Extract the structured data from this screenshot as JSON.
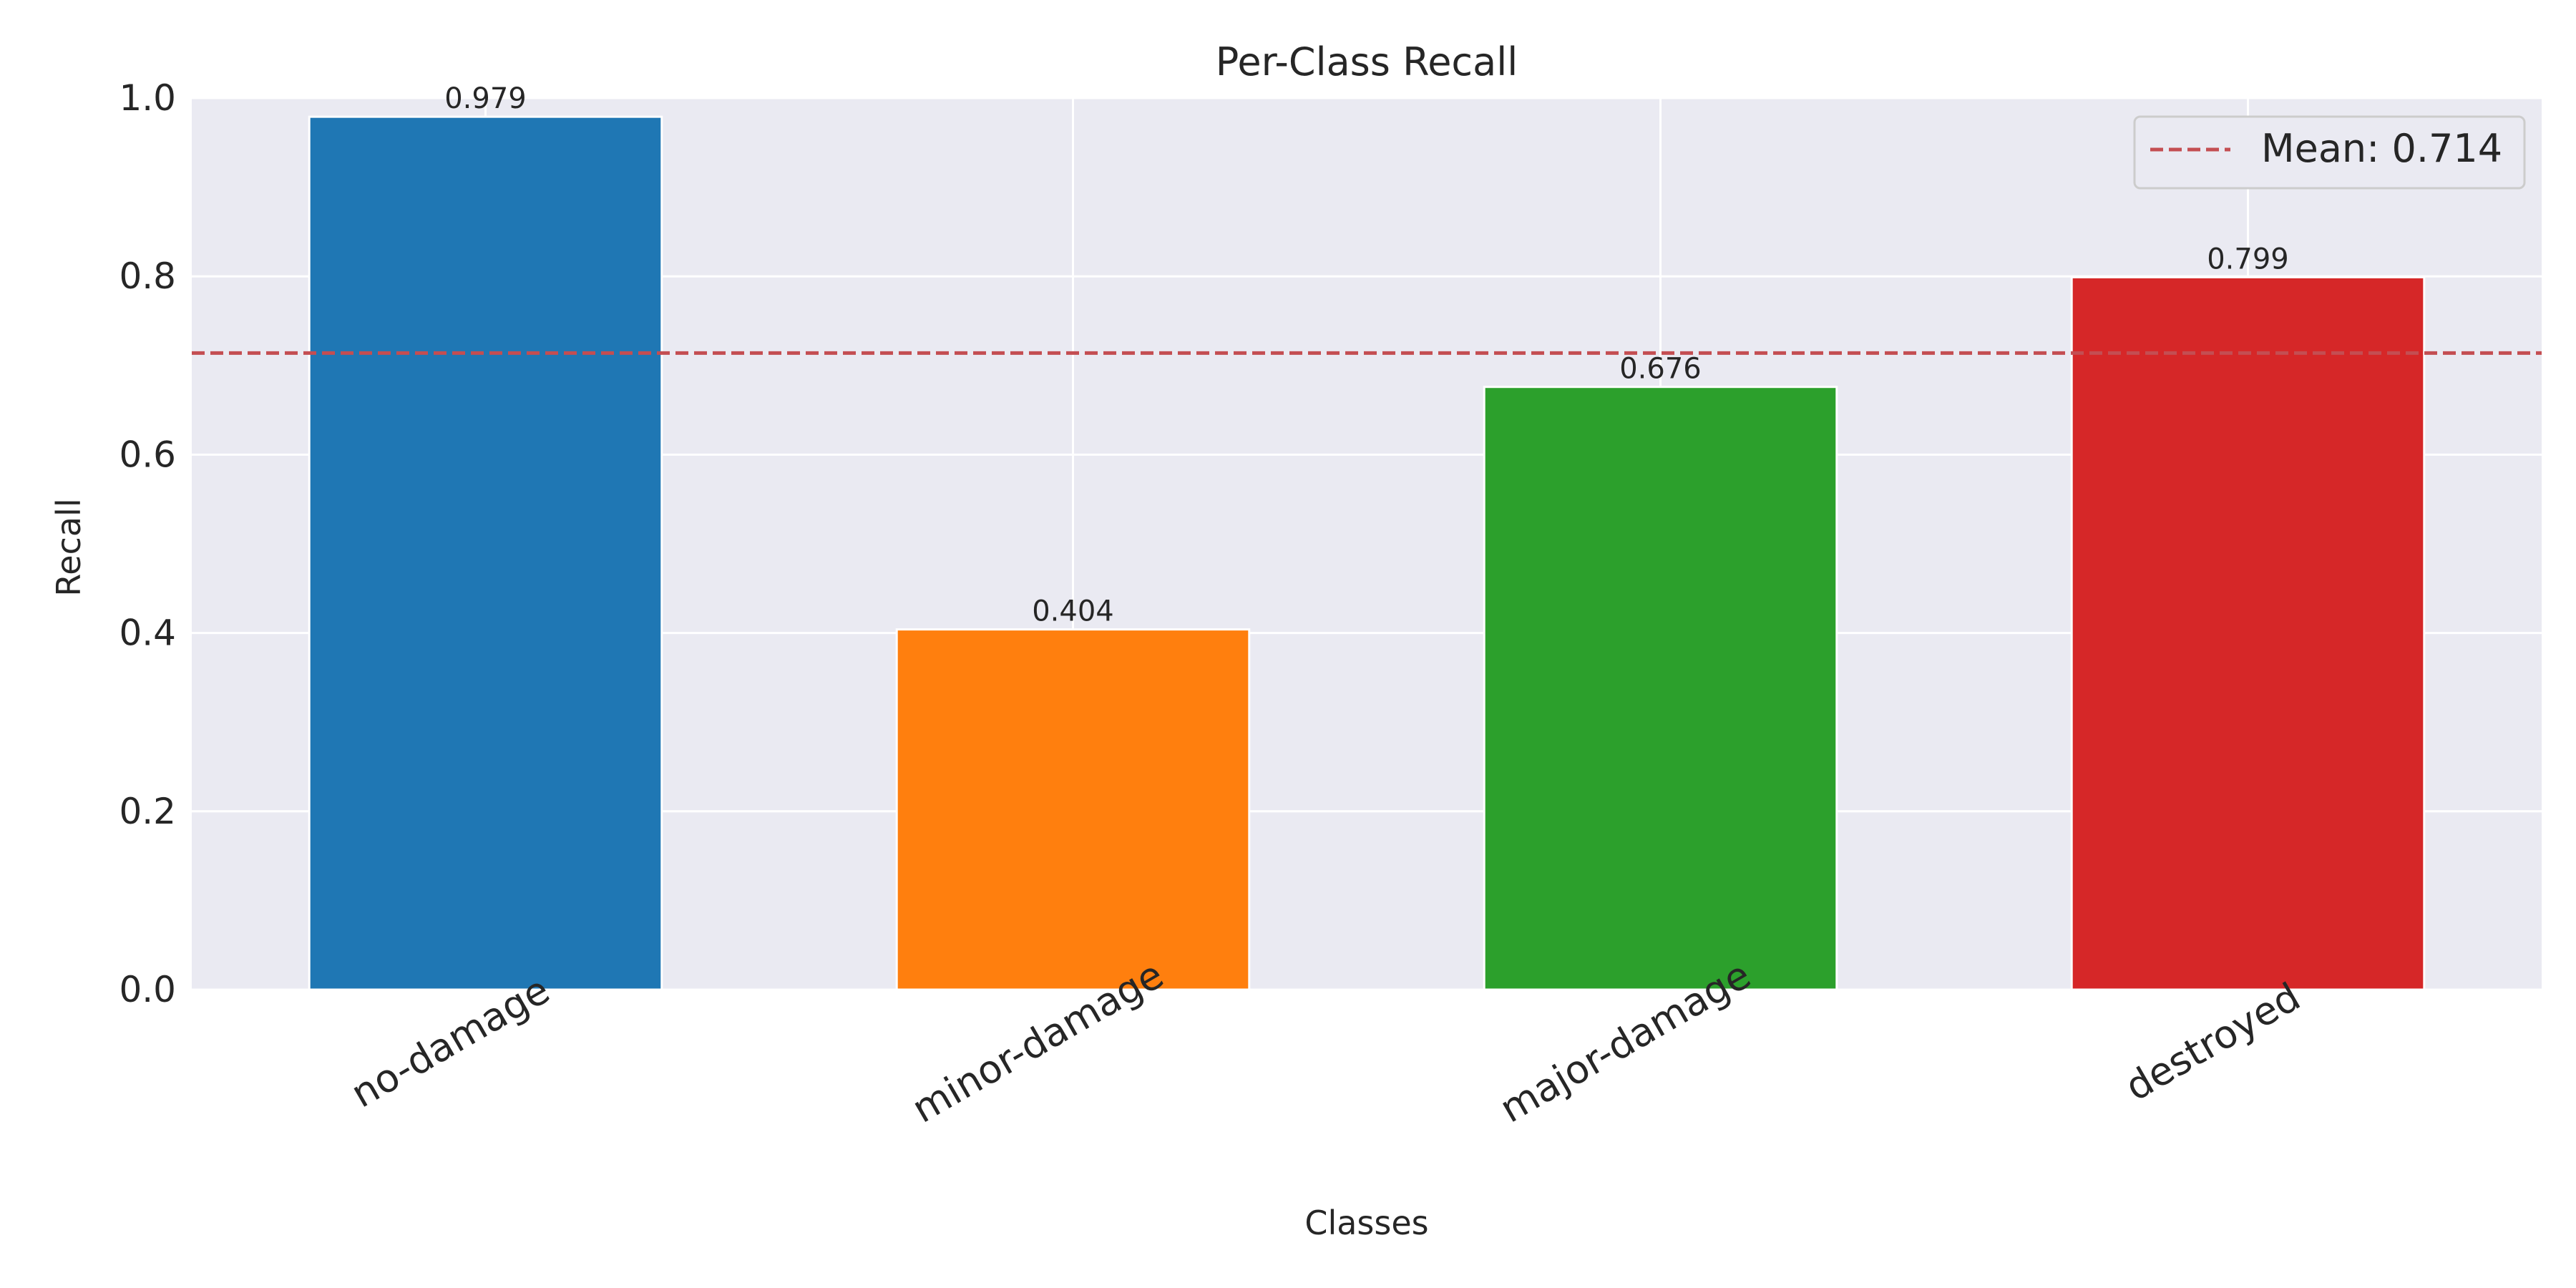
{
  "chart_data": {
    "type": "bar",
    "title": "Per-Class Recall",
    "xlabel": "Classes",
    "ylabel": "Recall",
    "categories": [
      "no-damage",
      "minor-damage",
      "major-damage",
      "destroyed"
    ],
    "values": [
      0.979,
      0.404,
      0.676,
      0.799
    ],
    "value_labels": [
      "0.979",
      "0.404",
      "0.676",
      "0.799"
    ],
    "colors": [
      "#1f77b4",
      "#ff7f0e",
      "#2ca02c",
      "#d62728"
    ],
    "ylim": [
      0,
      1.0
    ],
    "yticks": [
      0.0,
      0.2,
      0.4,
      0.6,
      0.8,
      1.0
    ],
    "ytick_labels": [
      "0.0",
      "0.2",
      "0.4",
      "0.6",
      "0.8",
      "1.0"
    ],
    "grid": true,
    "mean_line": {
      "value": 0.714,
      "label": "Mean: 0.714",
      "color": "#c44e52",
      "style": "dashed"
    },
    "legend": {
      "placement": "top-right",
      "entries": [
        "Mean: 0.714"
      ]
    },
    "background": "#eaeaf2"
  }
}
